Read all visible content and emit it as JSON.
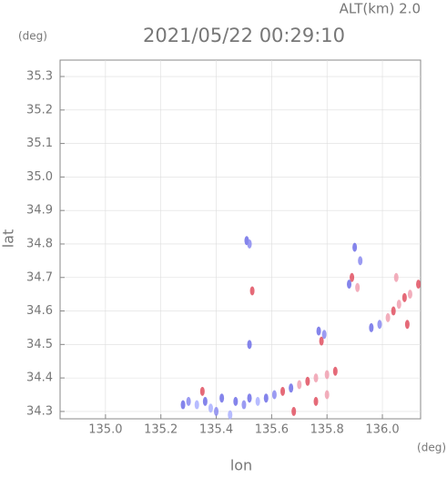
{
  "chart_data": {
    "type": "scatter",
    "annotation": "ALT(km) 2.0",
    "title": "2021/05/22 00:29:10",
    "y_unit": "(deg)",
    "x_unit": "(deg)",
    "xlabel": "lon",
    "ylabel": "lat",
    "xlim": [
      134.836,
      136.138
    ],
    "ylim": [
      34.278,
      35.349
    ],
    "xticks": [
      {
        "value": 135,
        "label": "135.0"
      },
      135.2,
      135.4,
      135.6,
      135.8,
      {
        "value": 136,
        "label": "136.0"
      }
    ],
    "yticks": [
      34.3,
      34.4,
      34.5,
      34.6,
      34.7,
      34.8,
      34.9,
      {
        "value": 35,
        "label": "35.0"
      },
      35.1,
      35.2,
      35.3
    ],
    "grid": true,
    "x": [
      135.28,
      135.3,
      135.33,
      135.36,
      135.38,
      135.4,
      135.42,
      135.45,
      135.47,
      135.5,
      135.52,
      135.55,
      135.58,
      135.61,
      135.64,
      135.67,
      135.7,
      135.73,
      135.76,
      135.8,
      135.83,
      135.68,
      135.76,
      135.8,
      135.35,
      135.51,
      135.52,
      135.53,
      135.52,
      135.77,
      135.78,
      135.79,
      135.9,
      135.92,
      135.89,
      135.88,
      135.91,
      135.96,
      135.99,
      136.02,
      136.04,
      136.06,
      136.08,
      136.1,
      136.13,
      136.05,
      136.09
    ],
    "values": [
      34.32,
      34.33,
      34.32,
      34.33,
      34.31,
      34.3,
      34.34,
      34.29,
      34.33,
      34.32,
      34.34,
      34.33,
      34.34,
      34.35,
      34.36,
      34.37,
      34.38,
      34.39,
      34.4,
      34.41,
      34.42,
      34.3,
      34.33,
      34.35,
      34.36,
      34.81,
      34.8,
      34.66,
      34.5,
      34.54,
      34.51,
      34.53,
      34.79,
      34.75,
      34.7,
      34.68,
      34.67,
      34.55,
      34.56,
      34.58,
      34.6,
      34.62,
      34.64,
      34.65,
      34.68,
      34.7,
      34.56
    ],
    "colors": [
      "#6f6fe8",
      "#8a8af0",
      "#aab0ff",
      "#6f6fe8",
      "#aab0ff",
      "#8a8af0",
      "#6f6fe8",
      "#aab0ff",
      "#6f6fe8",
      "#8a8af0",
      "#6f6fe8",
      "#aab0ff",
      "#6f6fe8",
      "#8a8af0",
      "#e05060",
      "#6f6fe8",
      "#f0a0b0",
      "#e05060",
      "#f0a0b0",
      "#f0a0b0",
      "#e05060",
      "#e05060",
      "#e05060",
      "#f0a0b0",
      "#e05060",
      "#6f6fe8",
      "#8a8af0",
      "#e05060",
      "#6f6fe8",
      "#6f6fe8",
      "#e05060",
      "#8a8af0",
      "#6f6fe8",
      "#8a8af0",
      "#e05060",
      "#6f6fe8",
      "#f0a0b0",
      "#6f6fe8",
      "#8a8af0",
      "#f0a0b0",
      "#e05060",
      "#f0a0b0",
      "#e05060",
      "#f0a0b0",
      "#e05060",
      "#f0a0b0",
      "#e05060"
    ]
  }
}
